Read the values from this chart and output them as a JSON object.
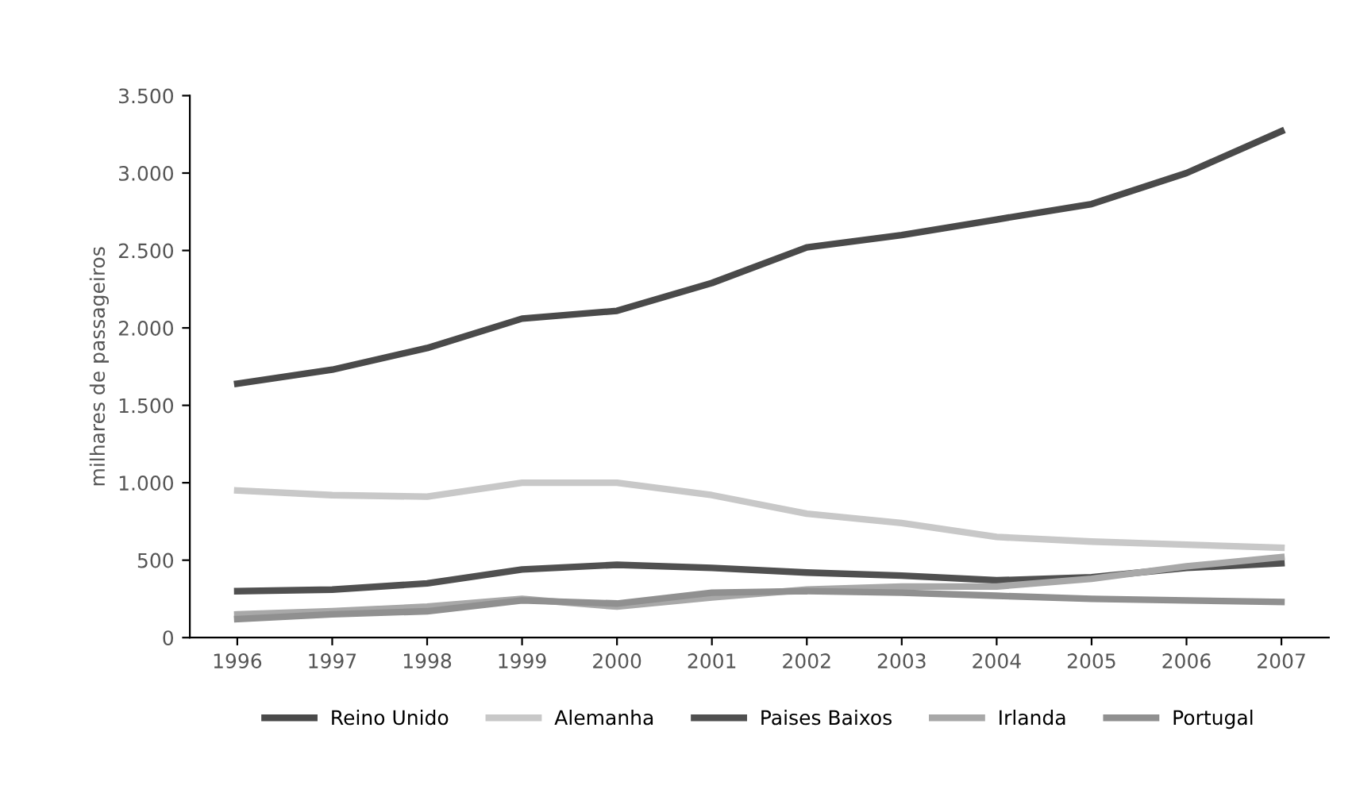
{
  "chart_data": {
    "type": "line",
    "ylabel": "milhares de passageiros",
    "categories": [
      "1996",
      "1997",
      "1998",
      "1999",
      "2000",
      "2001",
      "2002",
      "2003",
      "2004",
      "2005",
      "2006",
      "2007"
    ],
    "series": [
      {
        "name": "Reino Unido",
        "color": "#4a4a4a",
        "values": [
          1640,
          1730,
          1870,
          2060,
          2110,
          2290,
          2520,
          2600,
          2700,
          2800,
          3000,
          3270
        ]
      },
      {
        "name": "Alemanha",
        "color": "#c8c8c8",
        "values": [
          950,
          920,
          910,
          1000,
          1000,
          920,
          800,
          740,
          650,
          620,
          600,
          580
        ]
      },
      {
        "name": "Paises Baixos",
        "color": "#505050",
        "values": [
          300,
          310,
          350,
          440,
          470,
          450,
          420,
          400,
          370,
          390,
          450,
          480
        ]
      },
      {
        "name": "Irlanda",
        "color": "#a8a8a8",
        "values": [
          150,
          170,
          200,
          250,
          200,
          260,
          310,
          330,
          330,
          380,
          460,
          520
        ]
      },
      {
        "name": "Portugal",
        "color": "#909090",
        "values": [
          120,
          150,
          170,
          240,
          220,
          290,
          300,
          290,
          270,
          250,
          240,
          230
        ]
      }
    ],
    "ylim": [
      0,
      3500
    ],
    "yticks": [
      0,
      {
        "value": 500,
        "label": "500"
      },
      {
        "value": 1000,
        "label": "1.000"
      },
      {
        "value": 1500,
        "label": "1.500"
      },
      {
        "value": 2000,
        "label": "2.000"
      },
      {
        "value": 2500,
        "label": "2.500"
      },
      {
        "value": 3000,
        "label": "3.000"
      },
      {
        "value": 3500,
        "label": "3.500"
      }
    ],
    "grid": false,
    "legend": "bottom",
    "line_style": "solid",
    "marker": "none"
  }
}
